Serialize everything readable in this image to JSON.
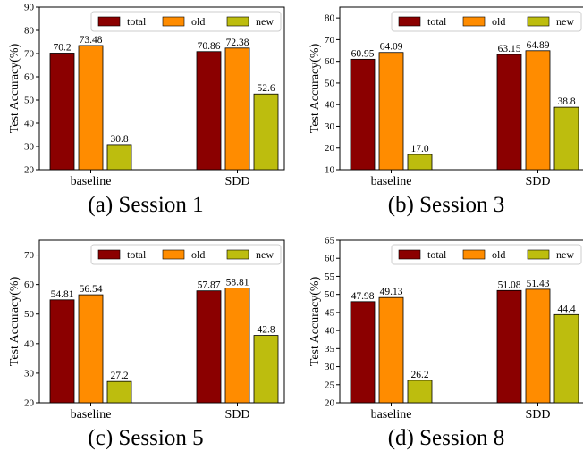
{
  "colors": {
    "total": "#8b0000",
    "old": "#ff8c00",
    "new": "#bdbd0e"
  },
  "chart_data": [
    {
      "type": "bar",
      "caption": "(a) Session 1",
      "ylabel": "Test Accuracy(%)",
      "ylim": [
        20,
        90
      ],
      "yticks": [
        20,
        30,
        40,
        50,
        60,
        70,
        80,
        90
      ],
      "categories": [
        "baseline",
        "SDD"
      ],
      "legend": "top-right",
      "series": [
        {
          "name": "total",
          "values": [
            70.2,
            70.86
          ],
          "labels": [
            "70.2",
            "70.86"
          ]
        },
        {
          "name": "old",
          "values": [
            73.48,
            72.38
          ],
          "labels": [
            "73.48",
            "72.38"
          ]
        },
        {
          "name": "new",
          "values": [
            30.8,
            52.6
          ],
          "labels": [
            "30.8",
            "52.6"
          ]
        }
      ]
    },
    {
      "type": "bar",
      "caption": "(b) Session 3",
      "ylabel": "Test Accuracy(%)",
      "ylim": [
        10,
        85
      ],
      "yticks": [
        10,
        20,
        30,
        40,
        50,
        60,
        70,
        80
      ],
      "categories": [
        "baseline",
        "SDD"
      ],
      "legend": "top-right",
      "series": [
        {
          "name": "total",
          "values": [
            60.95,
            63.15
          ],
          "labels": [
            "60.95",
            "63.15"
          ]
        },
        {
          "name": "old",
          "values": [
            64.09,
            64.89
          ],
          "labels": [
            "64.09",
            "64.89"
          ]
        },
        {
          "name": "new",
          "values": [
            17.0,
            38.8
          ],
          "labels": [
            "17.0",
            "38.8"
          ]
        }
      ]
    },
    {
      "type": "bar",
      "caption": "(c) Session 5",
      "ylabel": "Test Accuracy(%)",
      "ylim": [
        20,
        75
      ],
      "yticks": [
        20,
        30,
        40,
        50,
        60,
        70
      ],
      "categories": [
        "baseline",
        "SDD"
      ],
      "legend": "top-right",
      "series": [
        {
          "name": "total",
          "values": [
            54.81,
            57.87
          ],
          "labels": [
            "54.81",
            "57.87"
          ]
        },
        {
          "name": "old",
          "values": [
            56.54,
            58.81
          ],
          "labels": [
            "56.54",
            "58.81"
          ]
        },
        {
          "name": "new",
          "values": [
            27.2,
            42.8
          ],
          "labels": [
            "27.2",
            "42.8"
          ]
        }
      ]
    },
    {
      "type": "bar",
      "caption": "(d) Session 8",
      "ylabel": "Test Accuracy(%)",
      "ylim": [
        20,
        65
      ],
      "yticks": [
        20,
        25,
        30,
        35,
        40,
        45,
        50,
        55,
        60,
        65
      ],
      "categories": [
        "baseline",
        "SDD"
      ],
      "legend": "top-right",
      "series": [
        {
          "name": "total",
          "values": [
            47.98,
            51.08
          ],
          "labels": [
            "47.98",
            "51.08"
          ]
        },
        {
          "name": "old",
          "values": [
            49.13,
            51.43
          ],
          "labels": [
            "49.13",
            "51.43"
          ]
        },
        {
          "name": "new",
          "values": [
            26.2,
            44.4
          ],
          "labels": [
            "26.2",
            "44.4"
          ]
        }
      ]
    }
  ]
}
